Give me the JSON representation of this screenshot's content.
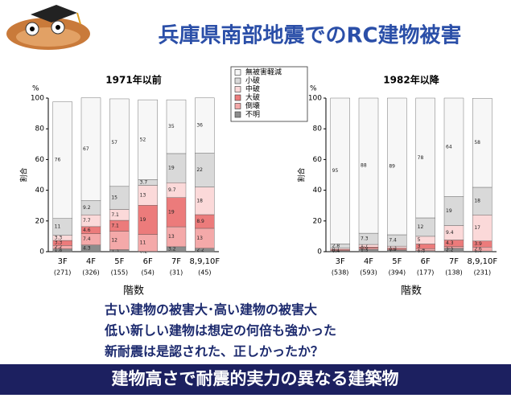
{
  "page": {
    "title": "兵庫県南部地震でのRC建物被害",
    "notes": [
      "古い建物の被害大･高い建物の被害大",
      "低い新しい建物は想定の何倍も強かった",
      "新耐震は是認された、正しかったか？"
    ],
    "banner": "建物高さで耐震的実力の異なる建築物"
  },
  "legend": {
    "names": [
      "無被害軽減",
      "小破",
      "中破",
      "大破",
      "倒壊",
      "不明"
    ],
    "colors": [
      "#f7f7f7",
      "#d9d9d9",
      "#fbd9d9",
      "#ec7b7b",
      "#f4a9a9",
      "#8c8c8c"
    ]
  },
  "chart_data": [
    {
      "type": "bar",
      "stacked": true,
      "title": "1971年以前",
      "y_unit": "%",
      "y_label": "割合",
      "x_label": "階数",
      "categories": [
        "3F",
        "4F",
        "5F",
        "6F",
        "7F",
        "8,9,10F"
      ],
      "category_counts": [
        "(271)",
        "(326)",
        "(155)",
        "(54)",
        "(31)",
        "(45)"
      ],
      "ylim": [
        0,
        100
      ],
      "yticks": [
        0,
        20,
        40,
        60,
        80,
        100
      ],
      "series": [
        {
          "values": [
            76,
            67,
            57,
            52,
            35,
            36
          ]
        },
        {
          "values": [
            11,
            9.2,
            15,
            3.7,
            19,
            22
          ]
        },
        {
          "values": [
            3.3,
            7.7,
            7.1,
            13,
            9.7,
            18
          ]
        },
        {
          "values": [
            3.3,
            4.6,
            7.1,
            19,
            19,
            8.9
          ]
        },
        {
          "values": [
            2.2,
            7.4,
            12,
            11,
            13,
            13
          ]
        },
        {
          "values": [
            1.8,
            4.3,
            1.3,
            0.2,
            3.2,
            2.2
          ]
        }
      ]
    },
    {
      "type": "bar",
      "stacked": true,
      "title": "1982年以降",
      "y_unit": "%",
      "y_label": "割合",
      "x_label": "階数",
      "categories": [
        "3F",
        "4F",
        "5F",
        "6F",
        "7F",
        "8,9,10F"
      ],
      "category_counts": [
        "(538)",
        "(593)",
        "(394)",
        "(177)",
        "(138)",
        "(231)"
      ],
      "ylim": [
        0,
        100
      ],
      "yticks": [
        0,
        20,
        40,
        60,
        80,
        100
      ],
      "series": [
        {
          "values": [
            95,
            88,
            89,
            78,
            64,
            58
          ]
        },
        {
          "values": [
            2.8,
            7.3,
            7.4,
            12,
            19,
            18
          ]
        },
        {
          "values": [
            0.7,
            1.7,
            1.3,
            5,
            9.4,
            17
          ]
        },
        {
          "values": [
            0.7,
            0.8,
            0.8,
            3,
            4.3,
            3.9
          ]
        },
        {
          "values": [
            0.4,
            0.7,
            0.5,
            1.4,
            1.1,
            2.6
          ]
        },
        {
          "values": [
            0.4,
            1.5,
            1,
            0.6,
            2.2,
            0.4
          ]
        }
      ]
    }
  ]
}
